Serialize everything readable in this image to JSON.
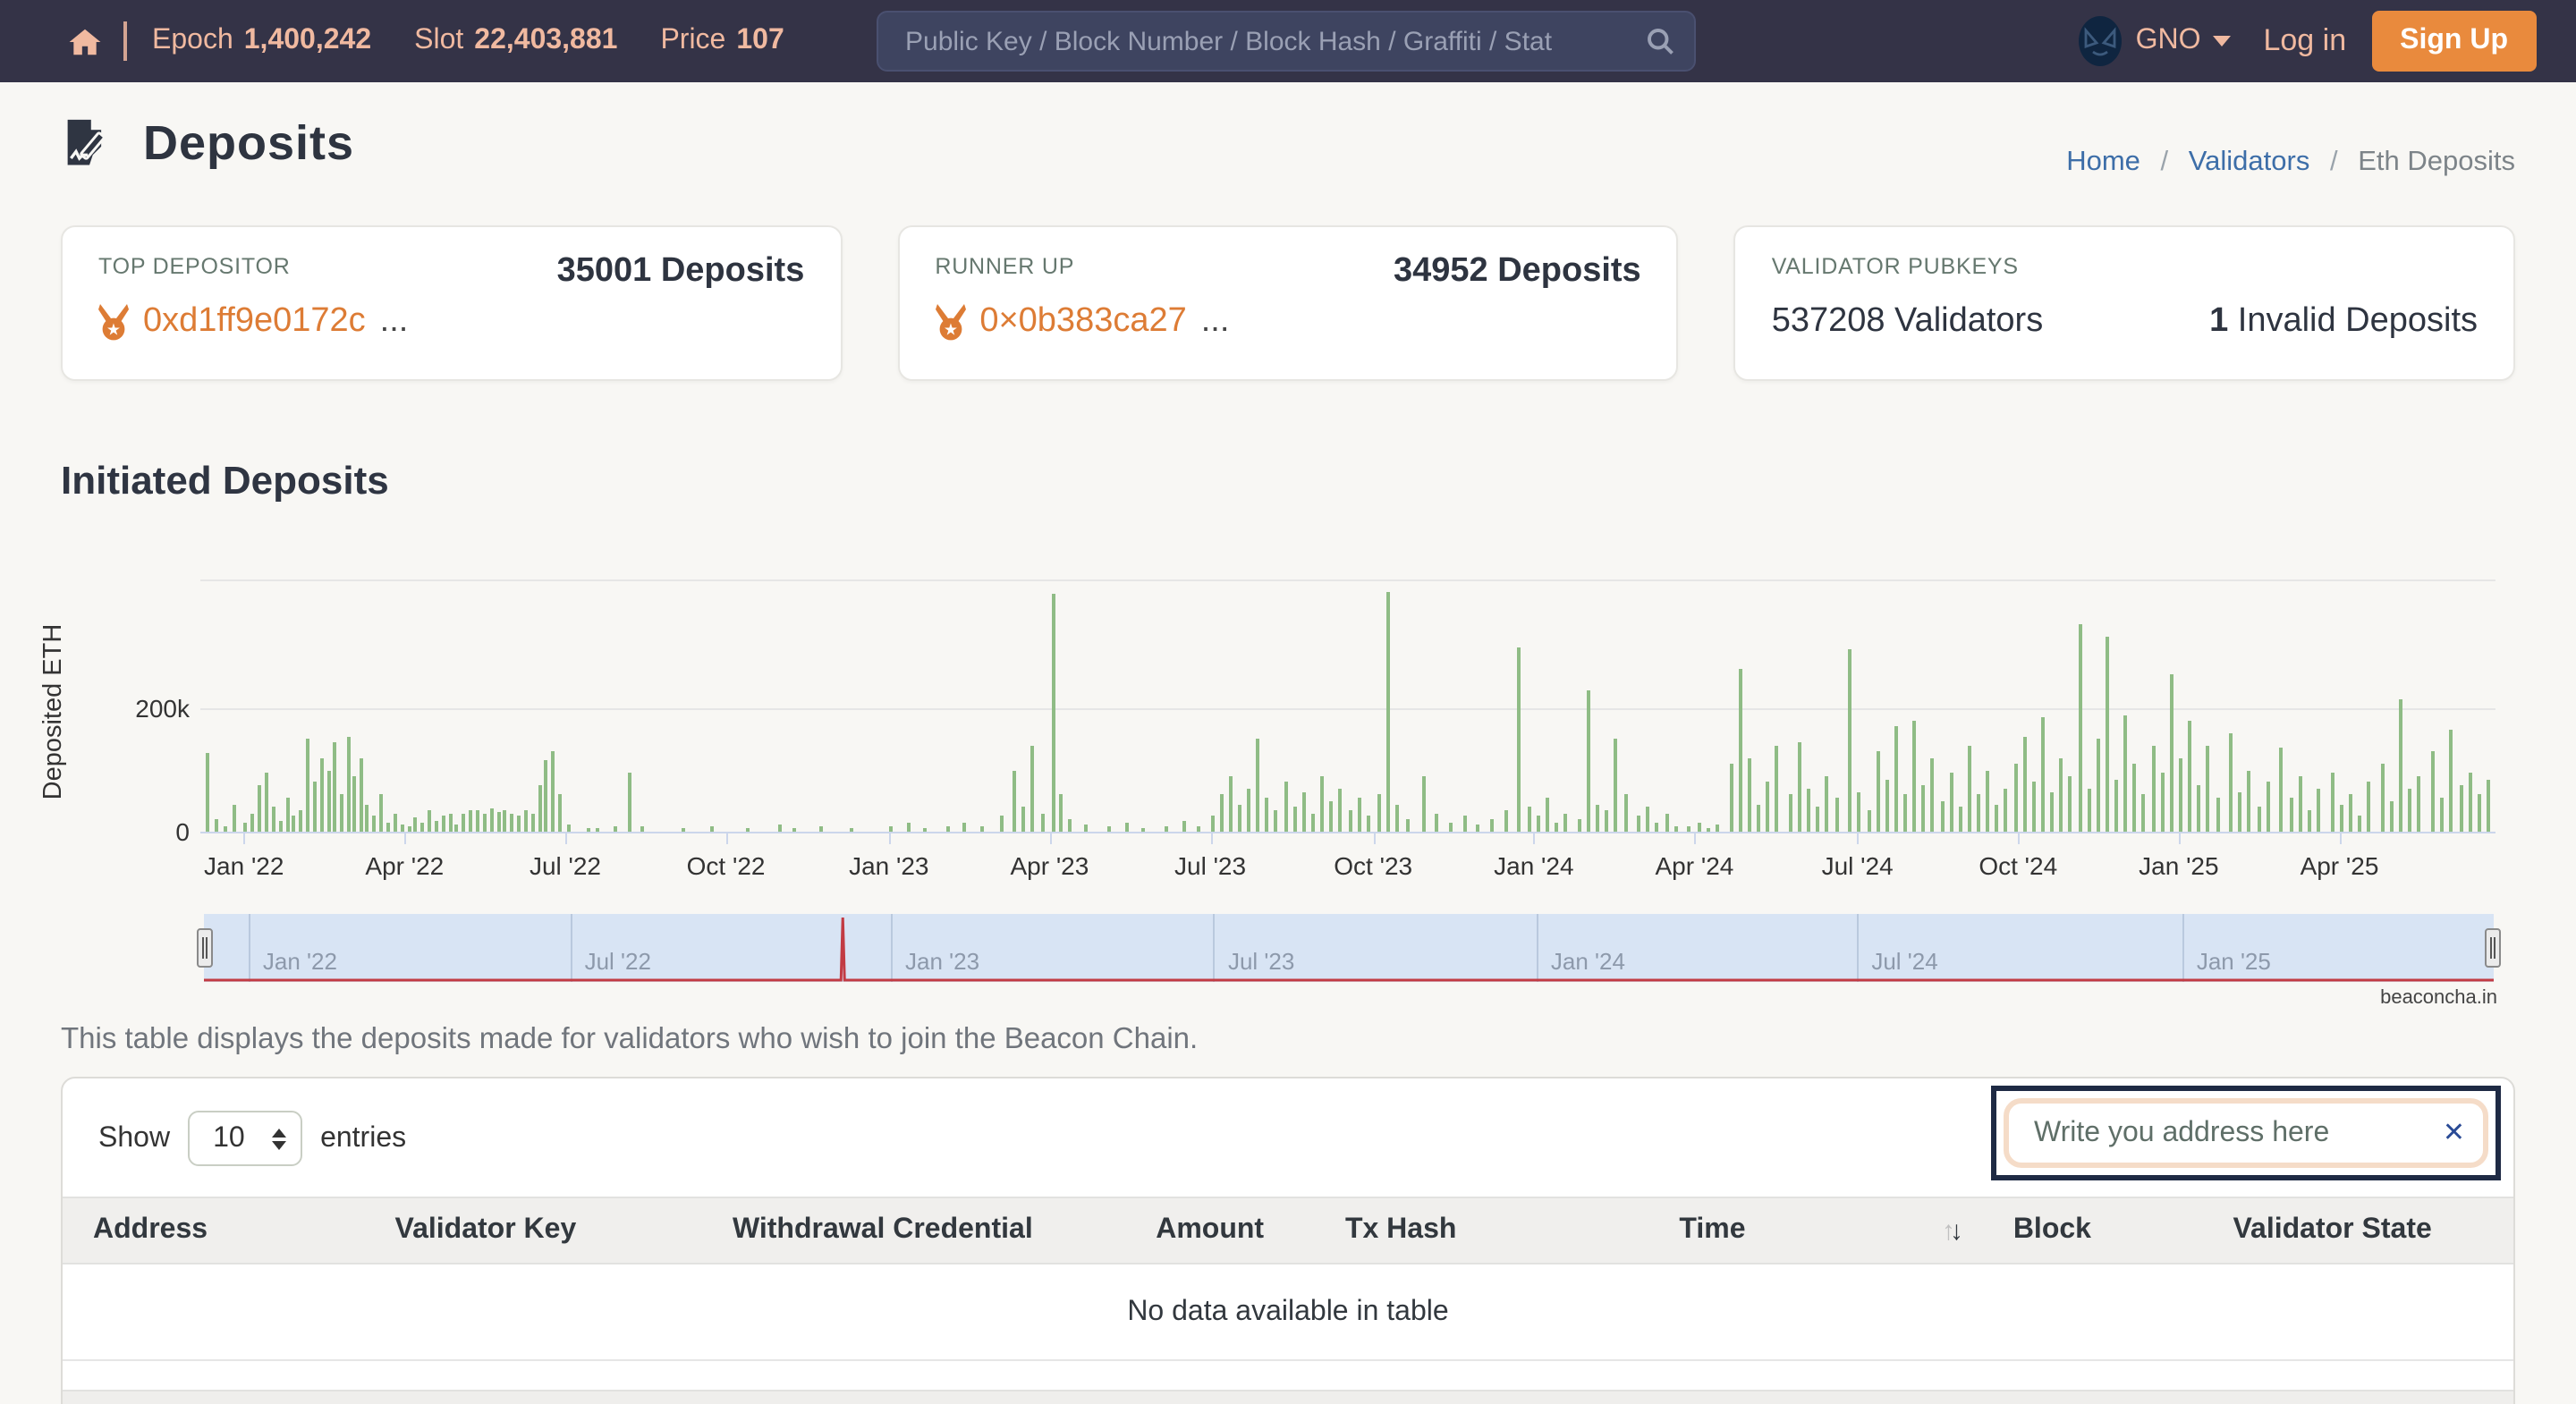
{
  "navbar": {
    "epoch_label": "Epoch",
    "epoch_value": "1,400,242",
    "slot_label": "Slot",
    "slot_value": "22,403,881",
    "price_label": "Price",
    "price_value": "107",
    "search_placeholder": "Public Key / Block Number / Block Hash / Graffiti / Stat",
    "currency": "GNO",
    "login_label": "Log in",
    "signup_label": "Sign Up"
  },
  "breadcrumb": {
    "home": "Home",
    "validators": "Validators",
    "current": "Eth Deposits",
    "separator": "/"
  },
  "page": {
    "title": "Deposits"
  },
  "cards": {
    "top_depositor": {
      "label": "TOP DEPOSITOR",
      "value": "35001 Deposits",
      "address": "0xd1ff9e0172c",
      "ellipsis": "..."
    },
    "runner_up": {
      "label": "RUNNER UP",
      "value": "34952 Deposits",
      "address": "0×0b383ca27",
      "ellipsis": "..."
    },
    "validator_pubkeys": {
      "label": "VALIDATOR PUBKEYS",
      "validators": "537208 Validators",
      "invalid_count": "1",
      "invalid_label": " Invalid Deposits"
    }
  },
  "chart_section": {
    "title": "Initiated Deposits",
    "credit": "beaconcha.in"
  },
  "chart_data": {
    "type": "bar",
    "title": "Initiated Deposits",
    "xlabel": "",
    "ylabel": "Deposited ETH",
    "ylim": [
      0,
      400000
    ],
    "y_gridlines_k": [
      200,
      400
    ],
    "y_tick_labels": [
      {
        "text": "200k",
        "value_k": 200
      },
      {
        "text": "0",
        "value_k": 0
      }
    ],
    "x_range": "Dec 2021 - Jun 2025 (t = fraction along axis)",
    "x_tick_labels": [
      "Jan '22",
      "Apr '22",
      "Jul '22",
      "Oct '22",
      "Jan '23",
      "Apr '23",
      "Jul '23",
      "Oct '23",
      "Jan '24",
      "Apr '24",
      "Jul '24",
      "Oct '24",
      "Jan '25",
      "Apr '25"
    ],
    "x_tick_t": [
      0.019,
      0.089,
      0.159,
      0.229,
      0.3,
      0.37,
      0.44,
      0.511,
      0.581,
      0.651,
      0.722,
      0.792,
      0.862,
      0.932
    ],
    "series": [
      {
        "name": "Deposited ETH",
        "unit": "thousand ETH",
        "points_t_vk": [
          [
            0.002,
            128
          ],
          [
            0.006,
            20
          ],
          [
            0.01,
            8
          ],
          [
            0.014,
            45
          ],
          [
            0.019,
            15
          ],
          [
            0.022,
            30
          ],
          [
            0.025,
            75
          ],
          [
            0.028,
            95
          ],
          [
            0.031,
            40
          ],
          [
            0.034,
            18
          ],
          [
            0.037,
            55
          ],
          [
            0.04,
            25
          ],
          [
            0.043,
            35
          ],
          [
            0.046,
            150
          ],
          [
            0.049,
            80
          ],
          [
            0.052,
            120
          ],
          [
            0.055,
            100
          ],
          [
            0.058,
            145
          ],
          [
            0.061,
            60
          ],
          [
            0.064,
            155
          ],
          [
            0.066,
            90
          ],
          [
            0.069,
            120
          ],
          [
            0.072,
            45
          ],
          [
            0.075,
            25
          ],
          [
            0.078,
            60
          ],
          [
            0.081,
            15
          ],
          [
            0.084,
            30
          ],
          [
            0.087,
            12
          ],
          [
            0.09,
            10
          ],
          [
            0.093,
            22
          ],
          [
            0.096,
            15
          ],
          [
            0.099,
            35
          ],
          [
            0.102,
            18
          ],
          [
            0.105,
            25
          ],
          [
            0.108,
            30
          ],
          [
            0.111,
            12
          ],
          [
            0.114,
            28
          ],
          [
            0.117,
            35
          ],
          [
            0.12,
            35
          ],
          [
            0.123,
            30
          ],
          [
            0.126,
            38
          ],
          [
            0.129,
            32
          ],
          [
            0.132,
            36
          ],
          [
            0.135,
            30
          ],
          [
            0.138,
            25
          ],
          [
            0.141,
            34
          ],
          [
            0.144,
            30
          ],
          [
            0.147,
            75
          ],
          [
            0.15,
            115
          ],
          [
            0.153,
            130
          ],
          [
            0.156,
            60
          ],
          [
            0.16,
            12
          ],
          [
            0.168,
            6
          ],
          [
            0.172,
            5
          ],
          [
            0.18,
            8
          ],
          [
            0.186,
            95
          ],
          [
            0.192,
            10
          ],
          [
            0.21,
            6
          ],
          [
            0.222,
            9
          ],
          [
            0.238,
            5
          ],
          [
            0.252,
            12
          ],
          [
            0.258,
            7
          ],
          [
            0.27,
            10
          ],
          [
            0.283,
            6
          ],
          [
            0.3,
            8
          ],
          [
            0.308,
            14
          ],
          [
            0.315,
            6
          ],
          [
            0.325,
            10
          ],
          [
            0.332,
            16
          ],
          [
            0.34,
            8
          ],
          [
            0.348,
            25
          ],
          [
            0.354,
            100
          ],
          [
            0.358,
            40
          ],
          [
            0.362,
            140
          ],
          [
            0.366,
            30
          ],
          [
            0.371,
            385
          ],
          [
            0.374,
            60
          ],
          [
            0.378,
            20
          ],
          [
            0.385,
            12
          ],
          [
            0.395,
            8
          ],
          [
            0.403,
            15
          ],
          [
            0.41,
            6
          ],
          [
            0.42,
            10
          ],
          [
            0.428,
            18
          ],
          [
            0.434,
            8
          ],
          [
            0.44,
            25
          ],
          [
            0.444,
            60
          ],
          [
            0.448,
            90
          ],
          [
            0.452,
            45
          ],
          [
            0.456,
            70
          ],
          [
            0.46,
            150
          ],
          [
            0.464,
            55
          ],
          [
            0.468,
            35
          ],
          [
            0.472,
            80
          ],
          [
            0.476,
            40
          ],
          [
            0.48,
            65
          ],
          [
            0.484,
            30
          ],
          [
            0.488,
            90
          ],
          [
            0.492,
            50
          ],
          [
            0.496,
            70
          ],
          [
            0.5,
            35
          ],
          [
            0.504,
            55
          ],
          [
            0.508,
            25
          ],
          [
            0.513,
            60
          ],
          [
            0.517,
            390
          ],
          [
            0.521,
            45
          ],
          [
            0.525,
            20
          ],
          [
            0.532,
            90
          ],
          [
            0.538,
            30
          ],
          [
            0.544,
            15
          ],
          [
            0.55,
            25
          ],
          [
            0.556,
            12
          ],
          [
            0.562,
            20
          ],
          [
            0.568,
            35
          ],
          [
            0.574,
            300
          ],
          [
            0.578,
            40
          ],
          [
            0.582,
            25
          ],
          [
            0.586,
            55
          ],
          [
            0.59,
            15
          ],
          [
            0.594,
            30
          ],
          [
            0.6,
            20
          ],
          [
            0.604,
            230
          ],
          [
            0.608,
            45
          ],
          [
            0.612,
            35
          ],
          [
            0.616,
            150
          ],
          [
            0.62,
            60
          ],
          [
            0.626,
            25
          ],
          [
            0.63,
            40
          ],
          [
            0.634,
            15
          ],
          [
            0.638,
            30
          ],
          [
            0.642,
            10
          ],
          [
            0.648,
            8
          ],
          [
            0.652,
            15
          ],
          [
            0.656,
            6
          ],
          [
            0.66,
            12
          ],
          [
            0.666,
            110
          ],
          [
            0.67,
            265
          ],
          [
            0.674,
            120
          ],
          [
            0.678,
            45
          ],
          [
            0.682,
            80
          ],
          [
            0.686,
            140
          ],
          [
            0.692,
            60
          ],
          [
            0.696,
            145
          ],
          [
            0.7,
            70
          ],
          [
            0.704,
            40
          ],
          [
            0.708,
            90
          ],
          [
            0.712,
            55
          ],
          [
            0.718,
            295
          ],
          [
            0.722,
            65
          ],
          [
            0.726,
            35
          ],
          [
            0.73,
            130
          ],
          [
            0.734,
            85
          ],
          [
            0.738,
            170
          ],
          [
            0.742,
            60
          ],
          [
            0.746,
            180
          ],
          [
            0.75,
            75
          ],
          [
            0.754,
            120
          ],
          [
            0.758,
            50
          ],
          [
            0.762,
            95
          ],
          [
            0.766,
            40
          ],
          [
            0.77,
            140
          ],
          [
            0.774,
            60
          ],
          [
            0.778,
            100
          ],
          [
            0.782,
            45
          ],
          [
            0.786,
            70
          ],
          [
            0.79,
            110
          ],
          [
            0.794,
            155
          ],
          [
            0.798,
            80
          ],
          [
            0.802,
            185
          ],
          [
            0.806,
            65
          ],
          [
            0.81,
            120
          ],
          [
            0.814,
            90
          ],
          [
            0.818,
            335
          ],
          [
            0.822,
            70
          ],
          [
            0.826,
            150
          ],
          [
            0.83,
            315
          ],
          [
            0.834,
            85
          ],
          [
            0.838,
            190
          ],
          [
            0.842,
            110
          ],
          [
            0.846,
            60
          ],
          [
            0.85,
            140
          ],
          [
            0.854,
            95
          ],
          [
            0.858,
            255
          ],
          [
            0.862,
            120
          ],
          [
            0.866,
            180
          ],
          [
            0.87,
            75
          ],
          [
            0.874,
            140
          ],
          [
            0.878,
            55
          ],
          [
            0.884,
            160
          ],
          [
            0.888,
            65
          ],
          [
            0.892,
            100
          ],
          [
            0.896,
            40
          ],
          [
            0.9,
            80
          ],
          [
            0.906,
            135
          ],
          [
            0.91,
            55
          ],
          [
            0.914,
            90
          ],
          [
            0.918,
            35
          ],
          [
            0.922,
            70
          ],
          [
            0.928,
            95
          ],
          [
            0.932,
            45
          ],
          [
            0.936,
            60
          ],
          [
            0.94,
            25
          ],
          [
            0.944,
            80
          ],
          [
            0.95,
            110
          ],
          [
            0.954,
            50
          ],
          [
            0.958,
            215
          ],
          [
            0.962,
            70
          ],
          [
            0.966,
            90
          ],
          [
            0.972,
            130
          ],
          [
            0.976,
            55
          ],
          [
            0.98,
            165
          ],
          [
            0.984,
            75
          ],
          [
            0.988,
            95
          ],
          [
            0.992,
            60
          ],
          [
            0.996,
            85
          ]
        ]
      }
    ],
    "navigator": {
      "labels": [
        "Jan '22",
        "Jul '22",
        "Jan '23",
        "Jul '23",
        "Jan '24",
        "Jul '24",
        "Jan '25"
      ],
      "gridline_t": [
        0.0195,
        0.16,
        0.3,
        0.441,
        0.582,
        0.722,
        0.864
      ],
      "series_color": "#c23b43",
      "spike_t": 0.279
    },
    "bar_color": "#8fbc85",
    "legend": "none",
    "grid": "on"
  },
  "table_section": {
    "description": "This table displays the deposits made for validators who wish to join the Beacon Chain.",
    "show_label": "Show",
    "page_size": "10",
    "entries_label": "entries",
    "filter_placeholder": "Write you address here",
    "clear_label": "✕",
    "headers": [
      "Address",
      "Validator Key",
      "Withdrawal Credential",
      "Amount",
      "Tx Hash",
      "Time",
      "Block",
      "Validator State"
    ],
    "sorted_column": "Time",
    "empty_message": "No data available in table"
  },
  "colors": {
    "navbar_bg": "#343347",
    "navbar_text": "#f0b9a0",
    "signup_bg": "#e98a3d",
    "accent_orange": "#dd7c35",
    "link_blue": "#3d6ea8",
    "bar_green": "#8fbc85",
    "navigator_bg": "#d8e4f4",
    "navigator_line": "#c23b43",
    "filter_ring": "#f5dcc8",
    "filter_border": "#1e2a44"
  }
}
